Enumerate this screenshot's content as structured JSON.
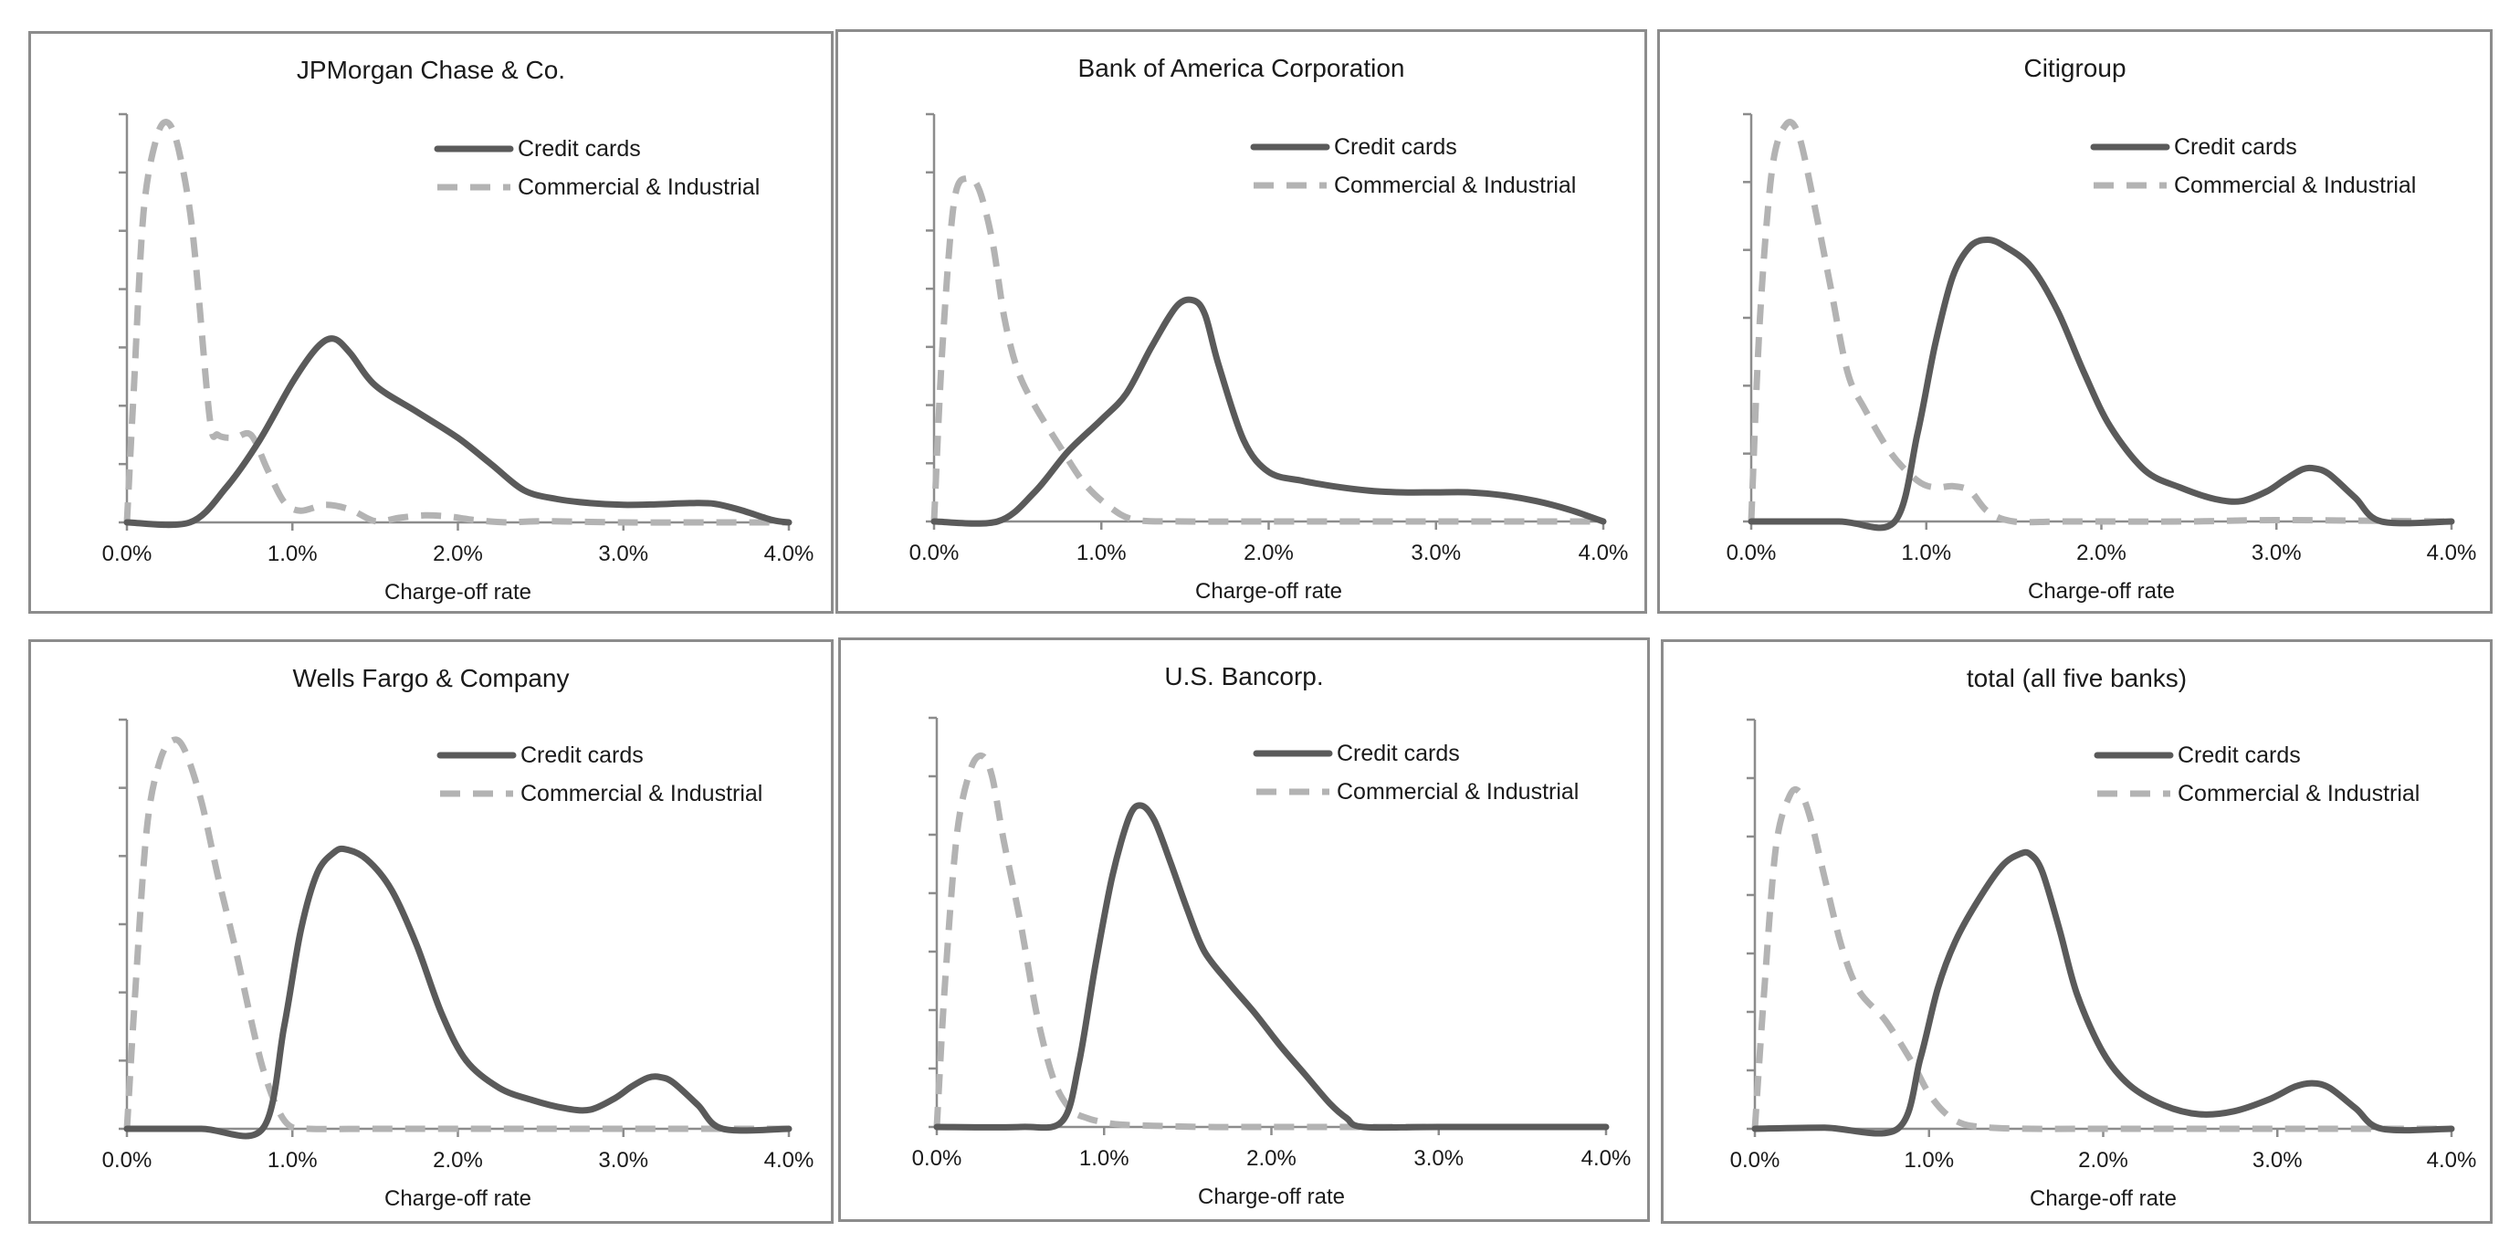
{
  "figure": {
    "colors": {
      "credit": "#5a5a5a",
      "ci": "#b3b3b3",
      "axis": "#8c8c8c"
    }
  },
  "legend": {
    "credit": "Credit cards",
    "ci": "Commercial & Industrial"
  },
  "chart_data": [
    {
      "type": "line",
      "title": "JPMorgan Chase & Co.",
      "xlabel": "Charge-off rate",
      "ylabel": "",
      "xlim": [
        0,
        4
      ],
      "ylim": [
        0,
        7
      ],
      "x_ticks": [
        "0.0%",
        "1.0%",
        "2.0%",
        "3.0%",
        "4.0%"
      ],
      "y_tick_count": 7,
      "series": [
        {
          "name": "Credit cards",
          "style": "solid",
          "x": [
            0,
            0.38,
            0.6,
            0.8,
            1.0,
            1.15,
            1.25,
            1.35,
            1.5,
            1.75,
            2.0,
            2.2,
            2.4,
            2.6,
            2.8,
            3.0,
            3.2,
            3.4,
            3.55,
            3.7,
            3.9,
            4.0
          ],
          "y": [
            0,
            0,
            0.6,
            1.4,
            2.4,
            3.0,
            3.15,
            2.9,
            2.35,
            1.9,
            1.45,
            1.0,
            0.55,
            0.4,
            0.33,
            0.3,
            0.31,
            0.33,
            0.32,
            0.22,
            0.04,
            0
          ]
        },
        {
          "name": "Commercial & Industrial",
          "style": "dashed",
          "x": [
            0,
            0.04,
            0.1,
            0.18,
            0.25,
            0.32,
            0.4,
            0.5,
            0.55,
            0.65,
            0.75,
            0.85,
            0.95,
            1.05,
            1.2,
            1.35,
            1.5,
            1.65,
            1.8,
            1.95,
            2.1,
            2.3,
            2.5,
            3.0,
            3.5,
            4.0
          ],
          "y": [
            0,
            2.2,
            5.3,
            6.6,
            6.85,
            6.3,
            4.9,
            1.8,
            1.5,
            1.45,
            1.5,
            0.9,
            0.35,
            0.2,
            0.3,
            0.22,
            0.02,
            0.08,
            0.12,
            0.1,
            0.04,
            0.0,
            0.02,
            0,
            0,
            0
          ]
        }
      ]
    },
    {
      "type": "line",
      "title": "Bank of America Corporation",
      "xlabel": "Charge-off rate",
      "ylabel": "",
      "xlim": [
        0,
        4
      ],
      "ylim": [
        0,
        7
      ],
      "x_ticks": [
        "0.0%",
        "1.0%",
        "2.0%",
        "3.0%",
        "4.0%"
      ],
      "y_tick_count": 7,
      "series": [
        {
          "name": "Credit cards",
          "style": "solid",
          "x": [
            0,
            0.38,
            0.6,
            0.8,
            1.0,
            1.15,
            1.3,
            1.45,
            1.55,
            1.62,
            1.7,
            1.85,
            2.0,
            2.2,
            2.4,
            2.6,
            2.8,
            3.0,
            3.2,
            3.4,
            3.6,
            3.8,
            4.0
          ],
          "y": [
            0,
            0,
            0.5,
            1.2,
            1.75,
            2.2,
            3.0,
            3.7,
            3.8,
            3.55,
            2.7,
            1.4,
            0.85,
            0.7,
            0.6,
            0.53,
            0.5,
            0.5,
            0.5,
            0.45,
            0.35,
            0.2,
            0
          ]
        },
        {
          "name": "Commercial & Industrial",
          "style": "dashed",
          "x": [
            0,
            0.05,
            0.12,
            0.2,
            0.27,
            0.35,
            0.42,
            0.5,
            0.6,
            0.75,
            0.9,
            1.05,
            1.2,
            1.5,
            2.0,
            3.0,
            4.0
          ],
          "y": [
            0,
            3.0,
            5.5,
            5.9,
            5.7,
            4.8,
            3.5,
            2.6,
            2.0,
            1.3,
            0.65,
            0.25,
            0.03,
            0,
            0,
            0,
            0
          ]
        }
      ]
    },
    {
      "type": "line",
      "title": "Citigroup",
      "xlabel": "Charge-off rate",
      "ylabel": "",
      "xlim": [
        0,
        4
      ],
      "ylim": [
        0,
        6
      ],
      "x_ticks": [
        "0.0%",
        "1.0%",
        "2.0%",
        "3.0%",
        "4.0%"
      ],
      "y_tick_count": 6,
      "series": [
        {
          "name": "Credit cards",
          "style": "solid",
          "x": [
            0,
            0.5,
            0.82,
            0.95,
            1.05,
            1.15,
            1.25,
            1.35,
            1.45,
            1.6,
            1.75,
            1.9,
            2.05,
            2.25,
            2.45,
            2.65,
            2.8,
            2.95,
            3.05,
            3.15,
            3.22,
            3.3,
            3.45,
            3.6,
            4.0
          ],
          "y": [
            0,
            0,
            0,
            1.3,
            2.6,
            3.6,
            4.05,
            4.15,
            4.05,
            3.75,
            3.1,
            2.2,
            1.4,
            0.75,
            0.5,
            0.33,
            0.3,
            0.45,
            0.62,
            0.77,
            0.78,
            0.7,
            0.35,
            0,
            0
          ]
        },
        {
          "name": "Commercial & Industrial",
          "style": "dashed",
          "x": [
            0,
            0.05,
            0.12,
            0.2,
            0.27,
            0.35,
            0.45,
            0.55,
            0.65,
            0.8,
            0.95,
            1.05,
            1.15,
            1.25,
            1.35,
            1.5,
            1.8,
            2.5,
            3.0,
            4.0
          ],
          "y": [
            0,
            3.0,
            5.2,
            5.85,
            5.7,
            4.8,
            3.5,
            2.2,
            1.65,
            1.0,
            0.6,
            0.5,
            0.52,
            0.45,
            0.15,
            0,
            0,
            0,
            0.02,
            0
          ]
        }
      ]
    },
    {
      "type": "line",
      "title": "Wells Fargo & Company",
      "xlabel": "Charge-off rate",
      "ylabel": "",
      "xlim": [
        0,
        4
      ],
      "ylim": [
        0,
        6
      ],
      "x_ticks": [
        "0.0%",
        "1.0%",
        "2.0%",
        "3.0%",
        "4.0%"
      ],
      "y_tick_count": 6,
      "series": [
        {
          "name": "Credit cards",
          "style": "solid",
          "x": [
            0,
            0.45,
            0.82,
            0.95,
            1.05,
            1.15,
            1.25,
            1.32,
            1.45,
            1.6,
            1.75,
            1.9,
            2.05,
            2.25,
            2.45,
            2.65,
            2.8,
            2.95,
            3.05,
            3.15,
            3.22,
            3.3,
            3.45,
            3.6,
            4.0
          ],
          "y": [
            0,
            0,
            0,
            1.5,
            2.9,
            3.75,
            4.05,
            4.1,
            3.95,
            3.5,
            2.7,
            1.7,
            1.0,
            0.6,
            0.42,
            0.3,
            0.28,
            0.45,
            0.62,
            0.75,
            0.76,
            0.68,
            0.35,
            0,
            0
          ]
        },
        {
          "name": "Commercial & Industrial",
          "style": "dashed",
          "x": [
            0,
            0.05,
            0.12,
            0.2,
            0.28,
            0.35,
            0.45,
            0.55,
            0.65,
            0.75,
            0.82,
            0.9,
            0.98,
            1.1,
            1.5,
            2.0,
            3.0,
            4.0
          ],
          "y": [
            0,
            2.0,
            4.4,
            5.4,
            5.7,
            5.55,
            4.8,
            3.7,
            2.7,
            1.6,
            0.9,
            0.35,
            0.05,
            0,
            0,
            0,
            0,
            0
          ]
        }
      ]
    },
    {
      "type": "line",
      "title": "U.S. Bancorp.",
      "xlabel": "Charge-off rate",
      "ylabel": "",
      "xlim": [
        0,
        4
      ],
      "ylim": [
        0,
        7
      ],
      "x_ticks": [
        "0.0%",
        "1.0%",
        "2.0%",
        "3.0%",
        "4.0%"
      ],
      "y_tick_count": 7,
      "series": [
        {
          "name": "Credit cards",
          "style": "solid",
          "x": [
            0,
            0.5,
            0.75,
            0.85,
            0.95,
            1.05,
            1.15,
            1.22,
            1.3,
            1.4,
            1.5,
            1.6,
            1.75,
            1.9,
            2.05,
            2.2,
            2.35,
            2.45,
            2.55,
            3.0,
            4.0
          ],
          "y": [
            0,
            0,
            0.1,
            1.1,
            2.8,
            4.3,
            5.3,
            5.5,
            5.25,
            4.5,
            3.7,
            3.0,
            2.45,
            1.95,
            1.4,
            0.9,
            0.4,
            0.15,
            0,
            0,
            0
          ]
        },
        {
          "name": "Commercial & Industrial",
          "style": "dashed",
          "x": [
            0,
            0.05,
            0.12,
            0.2,
            0.27,
            0.33,
            0.4,
            0.5,
            0.6,
            0.7,
            0.8,
            0.9,
            1.0,
            1.1,
            1.3,
            1.6,
            2.0,
            3.0,
            3.3,
            4.0
          ],
          "y": [
            0,
            2.5,
            5.0,
            6.1,
            6.35,
            6.0,
            4.9,
            3.5,
            1.9,
            0.8,
            0.3,
            0.15,
            0.08,
            0.04,
            0.02,
            0,
            0,
            0,
            0,
            0
          ]
        }
      ]
    },
    {
      "type": "line",
      "title": "total (all five banks)",
      "xlabel": "Charge-off rate",
      "ylabel": "",
      "xlim": [
        0,
        4
      ],
      "ylim": [
        0,
        7
      ],
      "x_ticks": [
        "0.0%",
        "1.0%",
        "2.0%",
        "3.0%",
        "4.0%"
      ],
      "y_tick_count": 7,
      "series": [
        {
          "name": "Credit cards",
          "style": "solid",
          "x": [
            0,
            0.4,
            0.82,
            0.95,
            1.05,
            1.15,
            1.28,
            1.42,
            1.52,
            1.58,
            1.65,
            1.75,
            1.85,
            2.0,
            2.15,
            2.35,
            2.55,
            2.75,
            2.95,
            3.1,
            3.2,
            3.3,
            3.45,
            3.6,
            4.0
          ],
          "y": [
            0,
            0.02,
            0,
            1.2,
            2.4,
            3.2,
            3.9,
            4.5,
            4.7,
            4.7,
            4.4,
            3.4,
            2.3,
            1.3,
            0.75,
            0.4,
            0.25,
            0.3,
            0.5,
            0.72,
            0.78,
            0.7,
            0.35,
            0,
            0
          ]
        },
        {
          "name": "Commercial & Industrial",
          "style": "dashed",
          "x": [
            0,
            0.05,
            0.12,
            0.2,
            0.26,
            0.32,
            0.4,
            0.5,
            0.6,
            0.75,
            0.9,
            1.0,
            1.1,
            1.2,
            1.35,
            1.6,
            2.0,
            3.0,
            4.0
          ],
          "y": [
            0,
            2.2,
            4.8,
            5.7,
            5.75,
            5.3,
            4.3,
            3.1,
            2.35,
            1.85,
            1.15,
            0.6,
            0.25,
            0.08,
            0.02,
            0,
            0,
            0,
            0
          ]
        }
      ]
    }
  ]
}
